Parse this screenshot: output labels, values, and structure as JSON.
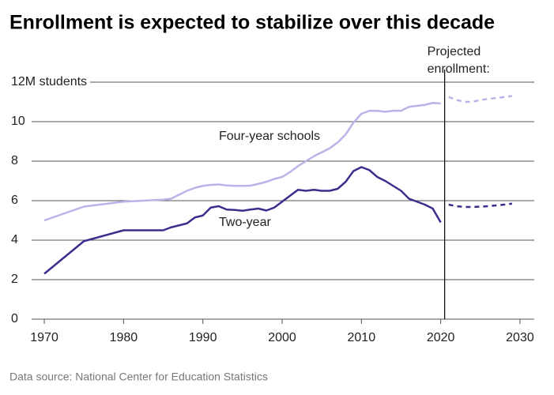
{
  "chart_data": {
    "type": "line",
    "title": "Enrollment is expected to stabilize over this decade",
    "source": "Data source: National Center for Education Statistics",
    "annotation": [
      "Projected",
      "enrollment:"
    ],
    "projection_start": 2020.5,
    "xlim": [
      1968.4,
      2031.8
    ],
    "xticks": [
      1970,
      1980,
      1990,
      2000,
      2010,
      2020,
      2030
    ],
    "ylim": [
      0,
      12
    ],
    "yticks": [
      0,
      2,
      4,
      6,
      8,
      {
        "value": 12,
        "label": "12M students"
      },
      10
    ],
    "grid": true,
    "series": [
      {
        "name": "Four-year schools",
        "color": "#b9b3e8",
        "dashed": false,
        "x": [
          1970,
          1975,
          1980,
          1985,
          1986,
          1987,
          1988,
          1989,
          1990,
          1991,
          1992,
          1993,
          1994,
          1995,
          1996,
          1997,
          1998,
          1999,
          2000,
          2001,
          2002,
          2003,
          2004,
          2005,
          2006,
          2007,
          2008,
          2009,
          2010,
          2011,
          2012,
          2013,
          2014,
          2015,
          2016,
          2017,
          2018,
          2019,
          2020
        ],
        "values": [
          5.0,
          5.7,
          5.95,
          6.05,
          6.1,
          6.3,
          6.5,
          6.65,
          6.75,
          6.8,
          6.82,
          6.77,
          6.75,
          6.75,
          6.76,
          6.85,
          6.95,
          7.1,
          7.2,
          7.45,
          7.75,
          8.0,
          8.25,
          8.45,
          8.65,
          8.95,
          9.35,
          9.95,
          10.4,
          10.55,
          10.55,
          10.5,
          10.55,
          10.55,
          10.75,
          10.8,
          10.85,
          10.95,
          10.92
        ]
      },
      {
        "color": "#b9b3e8",
        "dashed": true,
        "x": [
          2021,
          2022,
          2023,
          2024,
          2025,
          2026,
          2027,
          2028,
          2029
        ],
        "values": [
          11.25,
          11.1,
          11.0,
          11.0,
          11.1,
          11.15,
          11.2,
          11.25,
          11.3
        ]
      },
      {
        "name": "Two-year",
        "color": "#3a2f8c",
        "dashed": false,
        "x": [
          1970,
          1975,
          1980,
          1985,
          1986,
          1987,
          1988,
          1989,
          1990,
          1991,
          1992,
          1993,
          1994,
          1995,
          1996,
          1997,
          1998,
          1999,
          2000,
          2001,
          2002,
          2003,
          2004,
          2005,
          2006,
          2007,
          2008,
          2009,
          2010,
          2011,
          2012,
          2013,
          2014,
          2015,
          2016,
          2017,
          2018,
          2019,
          2020
        ],
        "values": [
          2.3,
          3.95,
          4.5,
          4.5,
          4.65,
          4.75,
          4.85,
          5.15,
          5.25,
          5.65,
          5.72,
          5.55,
          5.53,
          5.49,
          5.55,
          5.6,
          5.5,
          5.65,
          5.95,
          6.25,
          6.55,
          6.5,
          6.55,
          6.5,
          6.5,
          6.6,
          6.95,
          7.5,
          7.7,
          7.55,
          7.2,
          7.0,
          6.75,
          6.5,
          6.1,
          5.95,
          5.8,
          5.6,
          4.9
        ]
      },
      {
        "color": "#3a2f8c",
        "dashed": true,
        "x": [
          2021,
          2022,
          2023,
          2024,
          2025,
          2026,
          2027,
          2028,
          2029
        ],
        "values": [
          5.8,
          5.72,
          5.68,
          5.68,
          5.7,
          5.72,
          5.76,
          5.8,
          5.85
        ]
      }
    ]
  }
}
